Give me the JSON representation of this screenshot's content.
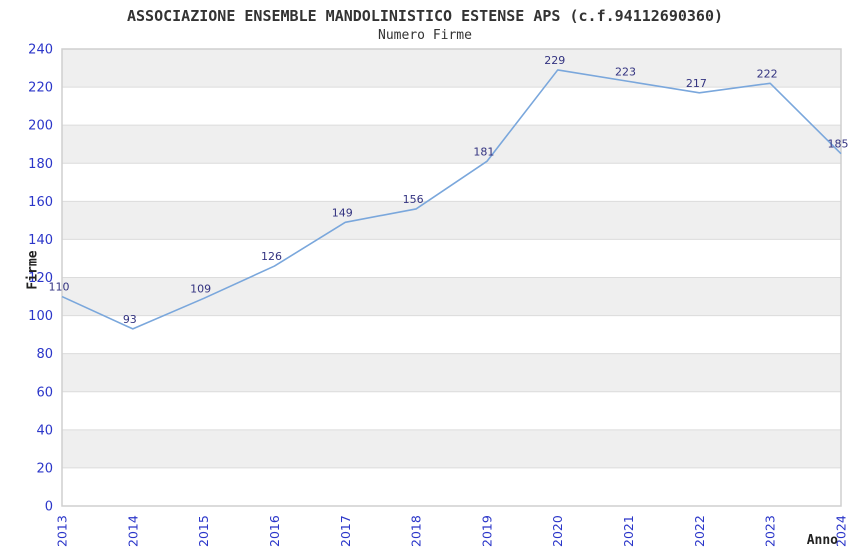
{
  "chart_data": {
    "type": "line",
    "title": "ASSOCIAZIONE ENSEMBLE MANDOLINISTICO ESTENSE APS (c.f.94112690360)",
    "subtitle": "Numero Firme",
    "xlabel": "Anno",
    "ylabel": "Firme",
    "x": [
      "2013",
      "2014",
      "2015",
      "2016",
      "2017",
      "2018",
      "2019",
      "2020",
      "2021",
      "2022",
      "2023",
      "2024"
    ],
    "series": [
      {
        "name": "Numero Firme",
        "values": [
          110,
          93,
          109,
          126,
          149,
          156,
          181,
          229,
          223,
          217,
          222,
          185
        ]
      }
    ],
    "ylim": [
      0,
      240
    ],
    "ytick_step": 20,
    "yticks": [
      0,
      20,
      40,
      60,
      80,
      100,
      120,
      140,
      160,
      180,
      200,
      220,
      240
    ],
    "grid": true,
    "legend_position": "none",
    "markers": false,
    "background_bands": "alternating horizontal gray stripes, gray on odd 20-unit bands (220-240 gray)",
    "colors": {
      "line": "#7AA7DC",
      "band": "#EFEFEF",
      "plot_bg": "#FFFFFF",
      "grid": "#DCDCDC",
      "border": "#CFCFCF",
      "tick_label": "#2B36C9",
      "data_label": "#333380",
      "title_text": "#333333"
    }
  }
}
